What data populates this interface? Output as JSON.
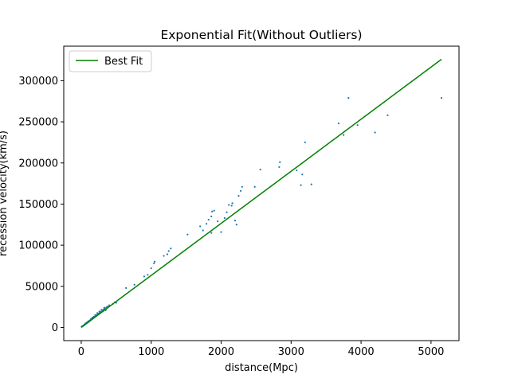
{
  "chart_data": {
    "type": "scatter",
    "title": "Exponential Fit(Without Outliers)",
    "xlabel": "distance(Mpc)",
    "ylabel": "recession velocity(km/s)",
    "xlim": [
      -250,
      5400
    ],
    "ylim": [
      -16000,
      342000
    ],
    "x_ticks": [
      0,
      1000,
      2000,
      3000,
      4000,
      5000
    ],
    "y_ticks": [
      0,
      50000,
      100000,
      150000,
      200000,
      250000,
      300000
    ],
    "grid": false,
    "legend_position": "top-left",
    "legend": [
      "Best Fit"
    ],
    "colors": {
      "scatter": "#1f77b4",
      "fit": "#008000"
    },
    "series": [
      {
        "kind": "scatter",
        "points": [
          [
            5,
            1000
          ],
          [
            15,
            1500
          ],
          [
            25,
            2000
          ],
          [
            35,
            2600
          ],
          [
            45,
            3200
          ],
          [
            55,
            3800
          ],
          [
            65,
            4400
          ],
          [
            75,
            5000
          ],
          [
            85,
            5600
          ],
          [
            95,
            6300
          ],
          [
            105,
            7000
          ],
          [
            115,
            7700
          ],
          [
            125,
            8400
          ],
          [
            135,
            9100
          ],
          [
            145,
            9800
          ],
          [
            155,
            10500
          ],
          [
            165,
            11200
          ],
          [
            175,
            11900
          ],
          [
            190,
            12900
          ],
          [
            205,
            14000
          ],
          [
            220,
            15000
          ],
          [
            235,
            16000
          ],
          [
            250,
            17000
          ],
          [
            265,
            18000
          ],
          [
            280,
            19000
          ],
          [
            300,
            20500
          ],
          [
            320,
            22000
          ],
          [
            340,
            23000
          ],
          [
            360,
            24500
          ],
          [
            380,
            25500
          ],
          [
            60,
            5000
          ],
          [
            80,
            6000
          ],
          [
            100,
            7500
          ],
          [
            120,
            8500
          ],
          [
            140,
            10500
          ],
          [
            160,
            12000
          ],
          [
            180,
            13000
          ],
          [
            200,
            15000
          ],
          [
            230,
            17500
          ],
          [
            260,
            19500
          ],
          [
            290,
            21500
          ],
          [
            330,
            24000
          ],
          [
            310,
            19500
          ],
          [
            350,
            21000
          ],
          [
            400,
            27000
          ],
          [
            450,
            28500
          ],
          [
            480,
            30500
          ],
          [
            500,
            30000
          ],
          [
            640,
            48000
          ],
          [
            760,
            52000
          ],
          [
            900,
            62000
          ],
          [
            950,
            64000
          ],
          [
            1000,
            72000
          ],
          [
            1040,
            78000
          ],
          [
            1050,
            80000
          ],
          [
            1180,
            87000
          ],
          [
            1230,
            89000
          ],
          [
            1250,
            93000
          ],
          [
            1280,
            96000
          ],
          [
            1520,
            113000
          ],
          [
            1700,
            123000
          ],
          [
            1740,
            118000
          ],
          [
            1790,
            126000
          ],
          [
            1820,
            131000
          ],
          [
            1860,
            135000
          ],
          [
            1870,
            141000
          ],
          [
            1900,
            142000
          ],
          [
            1860,
            115000
          ],
          [
            1950,
            129000
          ],
          [
            2000,
            116000
          ],
          [
            2050,
            133000
          ],
          [
            2080,
            140000
          ],
          [
            2110,
            149000
          ],
          [
            2150,
            148000
          ],
          [
            2160,
            151000
          ],
          [
            2200,
            130000
          ],
          [
            2220,
            125000
          ],
          [
            2250,
            160000
          ],
          [
            2280,
            166000
          ],
          [
            2300,
            171000
          ],
          [
            2480,
            171000
          ],
          [
            2560,
            192000
          ],
          [
            2830,
            195000
          ],
          [
            2840,
            201000
          ],
          [
            3080,
            191000
          ],
          [
            3140,
            173000
          ],
          [
            3160,
            186000
          ],
          [
            3200,
            225000
          ],
          [
            3290,
            174000
          ],
          [
            3680,
            248000
          ],
          [
            3750,
            234000
          ],
          [
            3820,
            279000
          ],
          [
            3950,
            246000
          ],
          [
            4200,
            237000
          ],
          [
            4380,
            258000
          ],
          [
            5150,
            279000
          ]
        ]
      },
      {
        "kind": "line",
        "name": "Best Fit",
        "x": [
          0,
          5150
        ],
        "y": [
          0,
          326000
        ]
      }
    ]
  }
}
